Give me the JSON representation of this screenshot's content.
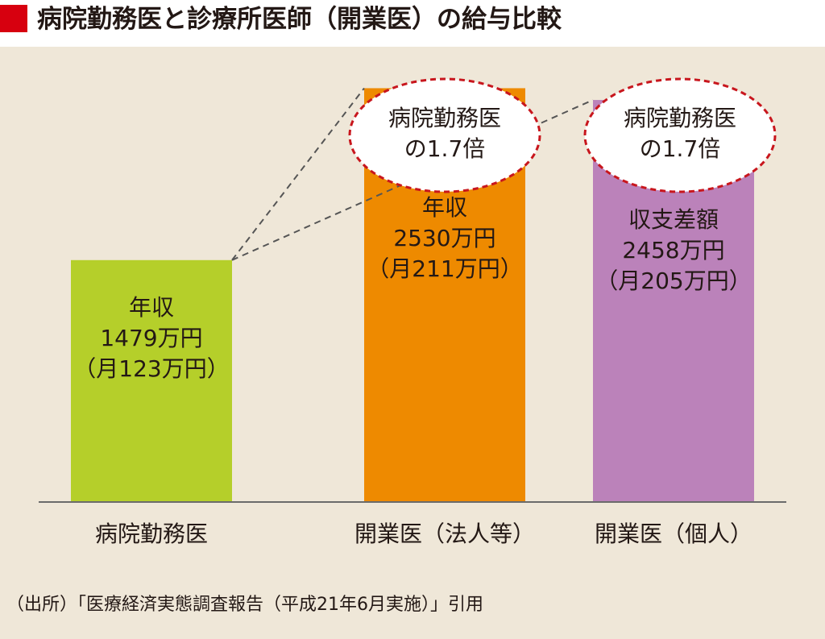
{
  "title": "病院勤務医と診療所医師（開業医）の給与比較",
  "colors": {
    "accent": "#d7000f",
    "background": "#efe7d8",
    "bubble_border": "#c8161d"
  },
  "chart_data": {
    "type": "bar",
    "categories": [
      "病院勤務医",
      "開業医（法人等）",
      "開業医（個人）"
    ],
    "values": [
      1479,
      2530,
      2458
    ],
    "value_unit": "万円",
    "ylim": [
      0,
      2700
    ],
    "bar_colors": [
      "#b5cf2a",
      "#ee8a00",
      "#bb82ba"
    ],
    "bar_labels": [
      [
        "年収",
        "1479万円",
        "（月123万円）"
      ],
      [
        "年収",
        "2530万円",
        "（月211万円）"
      ],
      [
        "収支差額",
        "2458万円",
        "（月205万円）"
      ]
    ],
    "annotations": [
      [
        "病院勤務医",
        "の1.7倍"
      ],
      [
        "病院勤務医",
        "の1.7倍"
      ]
    ],
    "grid": false,
    "legend": "none"
  },
  "source": "（出所）「医療経済実態調査報告（平成21年6月実施）」引用"
}
